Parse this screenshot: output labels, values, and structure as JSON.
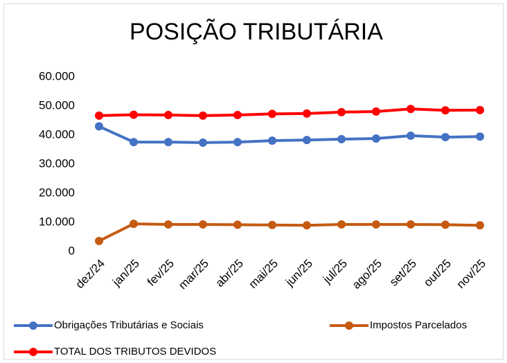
{
  "chart_data": {
    "type": "line",
    "title": "POSIÇÃO TRIBUTÁRIA",
    "categories": [
      "dez/24",
      "jan/25",
      "fev/25",
      "mar/25",
      "abr/25",
      "mai/25",
      "jun/25",
      "jul/25",
      "ago/25",
      "set/25",
      "out/25",
      "nov/25"
    ],
    "series": [
      {
        "name": "Obrigações Tributárias e Sociais",
        "color": "#4472c4",
        "values": [
          43000,
          37600,
          37600,
          37400,
          37600,
          38100,
          38300,
          38600,
          38800,
          39800,
          39300,
          39500
        ]
      },
      {
        "name": "Impostos Parcelados",
        "color": "#c55a11",
        "values": [
          3600,
          9500,
          9300,
          9300,
          9200,
          9100,
          9000,
          9300,
          9300,
          9300,
          9200,
          9000
        ]
      },
      {
        "name": "TOTAL  DOS TRIBUTOS DEVIDOS",
        "color": "#ff0000",
        "values": [
          46700,
          47000,
          46900,
          46700,
          46900,
          47300,
          47400,
          47900,
          48100,
          49000,
          48500,
          48600
        ]
      }
    ],
    "ylim": [
      0,
      60000
    ],
    "yticks": [
      0,
      {
        "value": 10000,
        "label": "10.000"
      },
      {
        "value": 20000,
        "label": "20.000"
      },
      {
        "value": 30000,
        "label": "30.000"
      },
      {
        "value": 40000,
        "label": "40.000"
      },
      {
        "value": 50000,
        "label": "50.000"
      },
      {
        "value": 60000,
        "label": "60.000"
      }
    ],
    "grid": false
  }
}
